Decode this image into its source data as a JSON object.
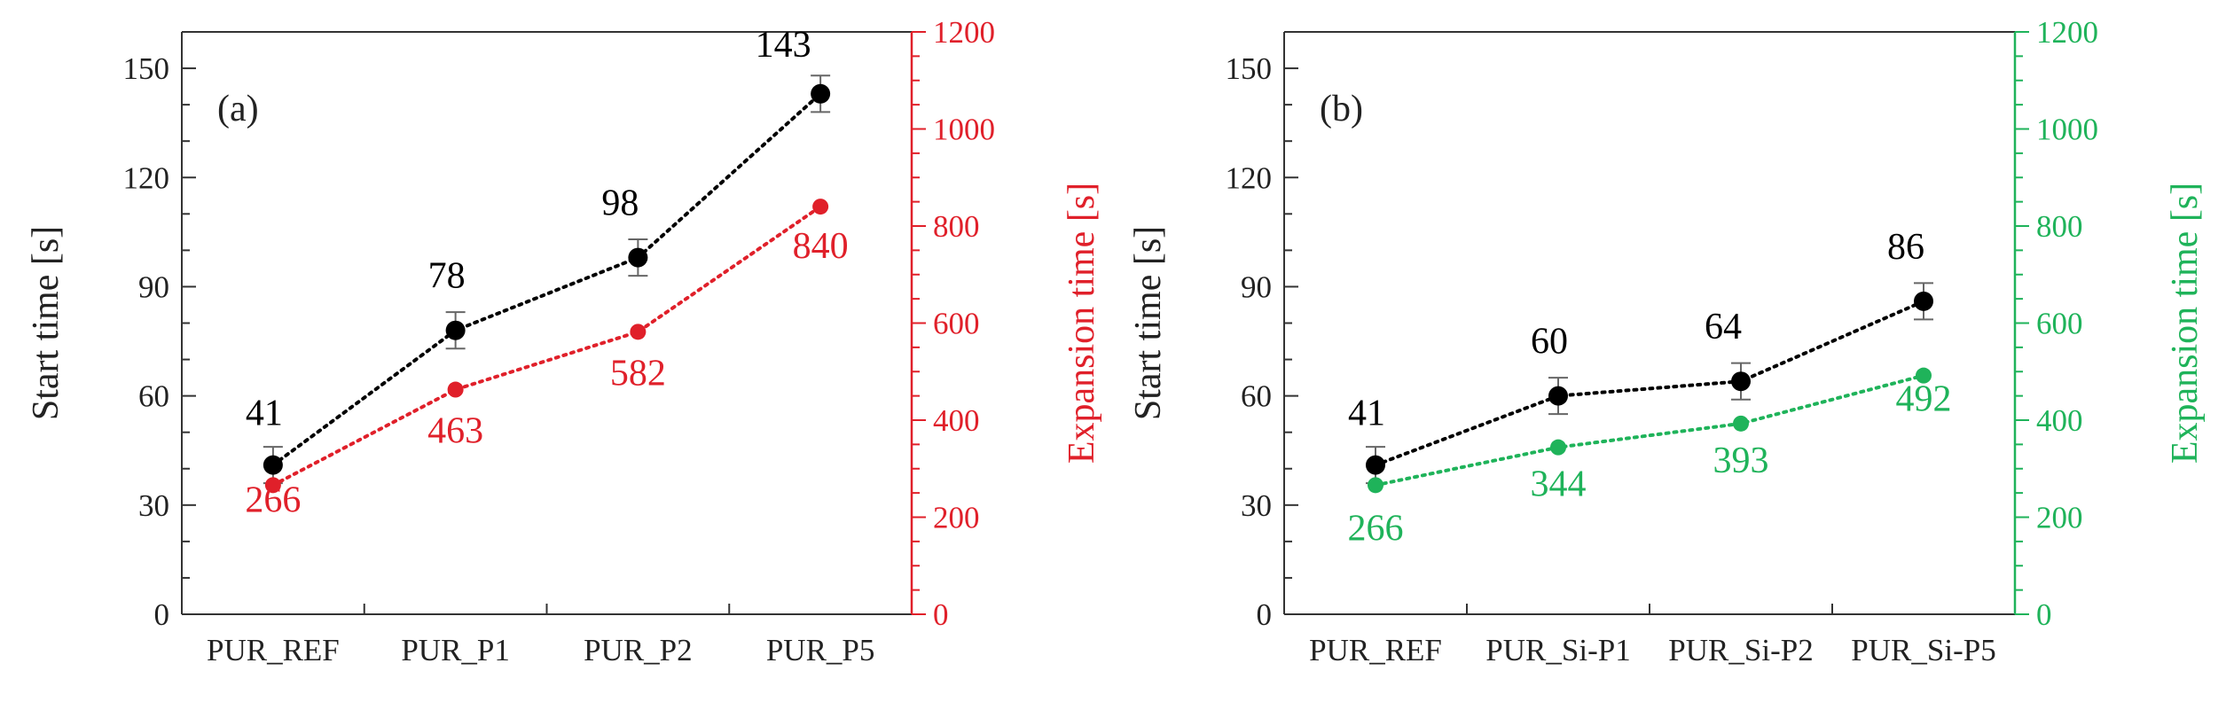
{
  "chart_data": [
    {
      "type": "line",
      "panel_label": "(a)",
      "categories": [
        "PUR_REF",
        "PUR_P1",
        "PUR_P2",
        "PUR_P5"
      ],
      "xlabel": "",
      "ylabel": "Start time [s]",
      "y2label": "Expansion time [s]",
      "ylim": [
        0,
        160
      ],
      "y2lim": [
        0,
        1200
      ],
      "yticks": [
        0,
        30,
        60,
        90,
        120,
        150
      ],
      "y2ticks": [
        0,
        200,
        400,
        600,
        800,
        1000,
        1200
      ],
      "grid": false,
      "series": [
        {
          "axis": "left",
          "color": "#000000",
          "values": [
            41,
            78,
            98,
            143
          ],
          "labels": [
            "41",
            "78",
            "98",
            "143"
          ],
          "errors": [
            5,
            5,
            5,
            5
          ]
        },
        {
          "axis": "right",
          "color": "#e0202a",
          "values": [
            266,
            463,
            582,
            840
          ],
          "labels": [
            "266",
            "463",
            "582",
            "840"
          ]
        }
      ]
    },
    {
      "type": "line",
      "panel_label": "(b)",
      "categories": [
        "PUR_REF",
        "PUR_Si-P1",
        "PUR_Si-P2",
        "PUR_Si-P5"
      ],
      "xlabel": "",
      "ylabel": "Start time [s]",
      "y2label": "Expansion time [s]",
      "ylim": [
        0,
        160
      ],
      "y2lim": [
        0,
        1200
      ],
      "yticks": [
        0,
        30,
        60,
        90,
        120,
        150
      ],
      "y2ticks": [
        0,
        200,
        400,
        600,
        800,
        1000,
        1200
      ],
      "grid": false,
      "series": [
        {
          "axis": "left",
          "color": "#000000",
          "values": [
            41,
            60,
            64,
            86
          ],
          "labels": [
            "41",
            "60",
            "64",
            "86"
          ],
          "errors": [
            5,
            5,
            5,
            5
          ]
        },
        {
          "axis": "right",
          "color": "#1fb35a",
          "values": [
            266,
            344,
            393,
            492
          ],
          "labels": [
            "266",
            "344",
            "393",
            "492"
          ]
        }
      ]
    }
  ]
}
